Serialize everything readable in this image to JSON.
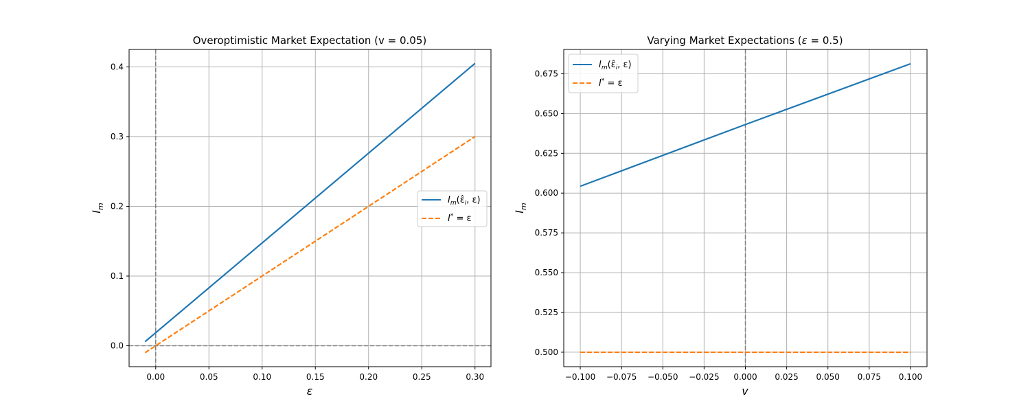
{
  "chart_data": [
    {
      "type": "line",
      "title": "Overoptimistic Market Expectation (v = 0.05)",
      "xlabel": "ε",
      "ylabel": "I_m",
      "xlim": [
        -0.025,
        0.315
      ],
      "ylim": [
        -0.03,
        0.425
      ],
      "xticks": [
        0.0,
        0.05,
        0.1,
        0.15,
        0.2,
        0.25,
        0.3
      ],
      "xtick_labels": [
        "0.00",
        "0.05",
        "0.10",
        "0.15",
        "0.20",
        "0.25",
        "0.30"
      ],
      "yticks": [
        0.0,
        0.1,
        0.2,
        0.3,
        0.4
      ],
      "ytick_labels": [
        "0.0",
        "0.1",
        "0.2",
        "0.3",
        "0.4"
      ],
      "grid": true,
      "legend_position": "center-right",
      "reference_lines": [
        {
          "orientation": "vertical",
          "value": 0.0,
          "color": "#808080",
          "style": "dashed"
        },
        {
          "orientation": "horizontal",
          "value": 0.0,
          "color": "#808080",
          "style": "dashed"
        }
      ],
      "series": [
        {
          "name": "I_m(ε̂_i, ε)",
          "name_main": "I",
          "name_sub": "m",
          "name_args": "(ε̂",
          "name_args_sub": "i",
          "name_args_end": ", ε)",
          "color": "#1f77b4",
          "style": "solid",
          "x": [
            -0.01,
            0.3
          ],
          "y": [
            0.0058,
            0.405
          ]
        },
        {
          "name": "I* = ε",
          "name_main": "I",
          "name_sup": "*",
          "name_rest": " = ε",
          "color": "#ff7f0e",
          "style": "dashed",
          "x": [
            -0.01,
            0.3
          ],
          "y": [
            -0.01,
            0.3
          ]
        }
      ]
    },
    {
      "type": "line",
      "title": "Varying Market Expectations (ε = 0.5)",
      "xlabel": "v",
      "ylabel": "I_m",
      "xlim": [
        -0.11,
        0.11
      ],
      "ylim": [
        0.4909,
        0.6903
      ],
      "xticks": [
        -0.1,
        -0.075,
        -0.05,
        -0.025,
        0.0,
        0.025,
        0.05,
        0.075,
        0.1
      ],
      "xtick_labels": [
        "−0.100",
        "−0.075",
        "−0.050",
        "−0.025",
        "0.000",
        "0.025",
        "0.050",
        "0.075",
        "0.100"
      ],
      "yticks": [
        0.5,
        0.525,
        0.55,
        0.575,
        0.6,
        0.625,
        0.65,
        0.675
      ],
      "ytick_labels": [
        "0.500",
        "0.525",
        "0.550",
        "0.575",
        "0.600",
        "0.625",
        "0.650",
        "0.675"
      ],
      "grid": true,
      "legend_position": "top-left",
      "reference_lines": [
        {
          "orientation": "vertical",
          "value": 0.0,
          "color": "#808080",
          "style": "dashed"
        }
      ],
      "series": [
        {
          "name": "I_m(ε̂_i, ε)",
          "name_main": "I",
          "name_sub": "m",
          "name_args": "(ε̂",
          "name_args_sub": "i",
          "name_args_end": ", ε)",
          "color": "#1f77b4",
          "style": "solid",
          "x": [
            -0.1,
            0.0,
            0.1
          ],
          "y": [
            0.6043,
            0.6431,
            0.6813
          ]
        },
        {
          "name": "I* = ε",
          "name_main": "I",
          "name_sup": "*",
          "name_rest": " = ε",
          "color": "#ff7f0e",
          "style": "dashed",
          "x": [
            -0.1,
            0.1
          ],
          "y": [
            0.5,
            0.5
          ]
        }
      ]
    }
  ]
}
